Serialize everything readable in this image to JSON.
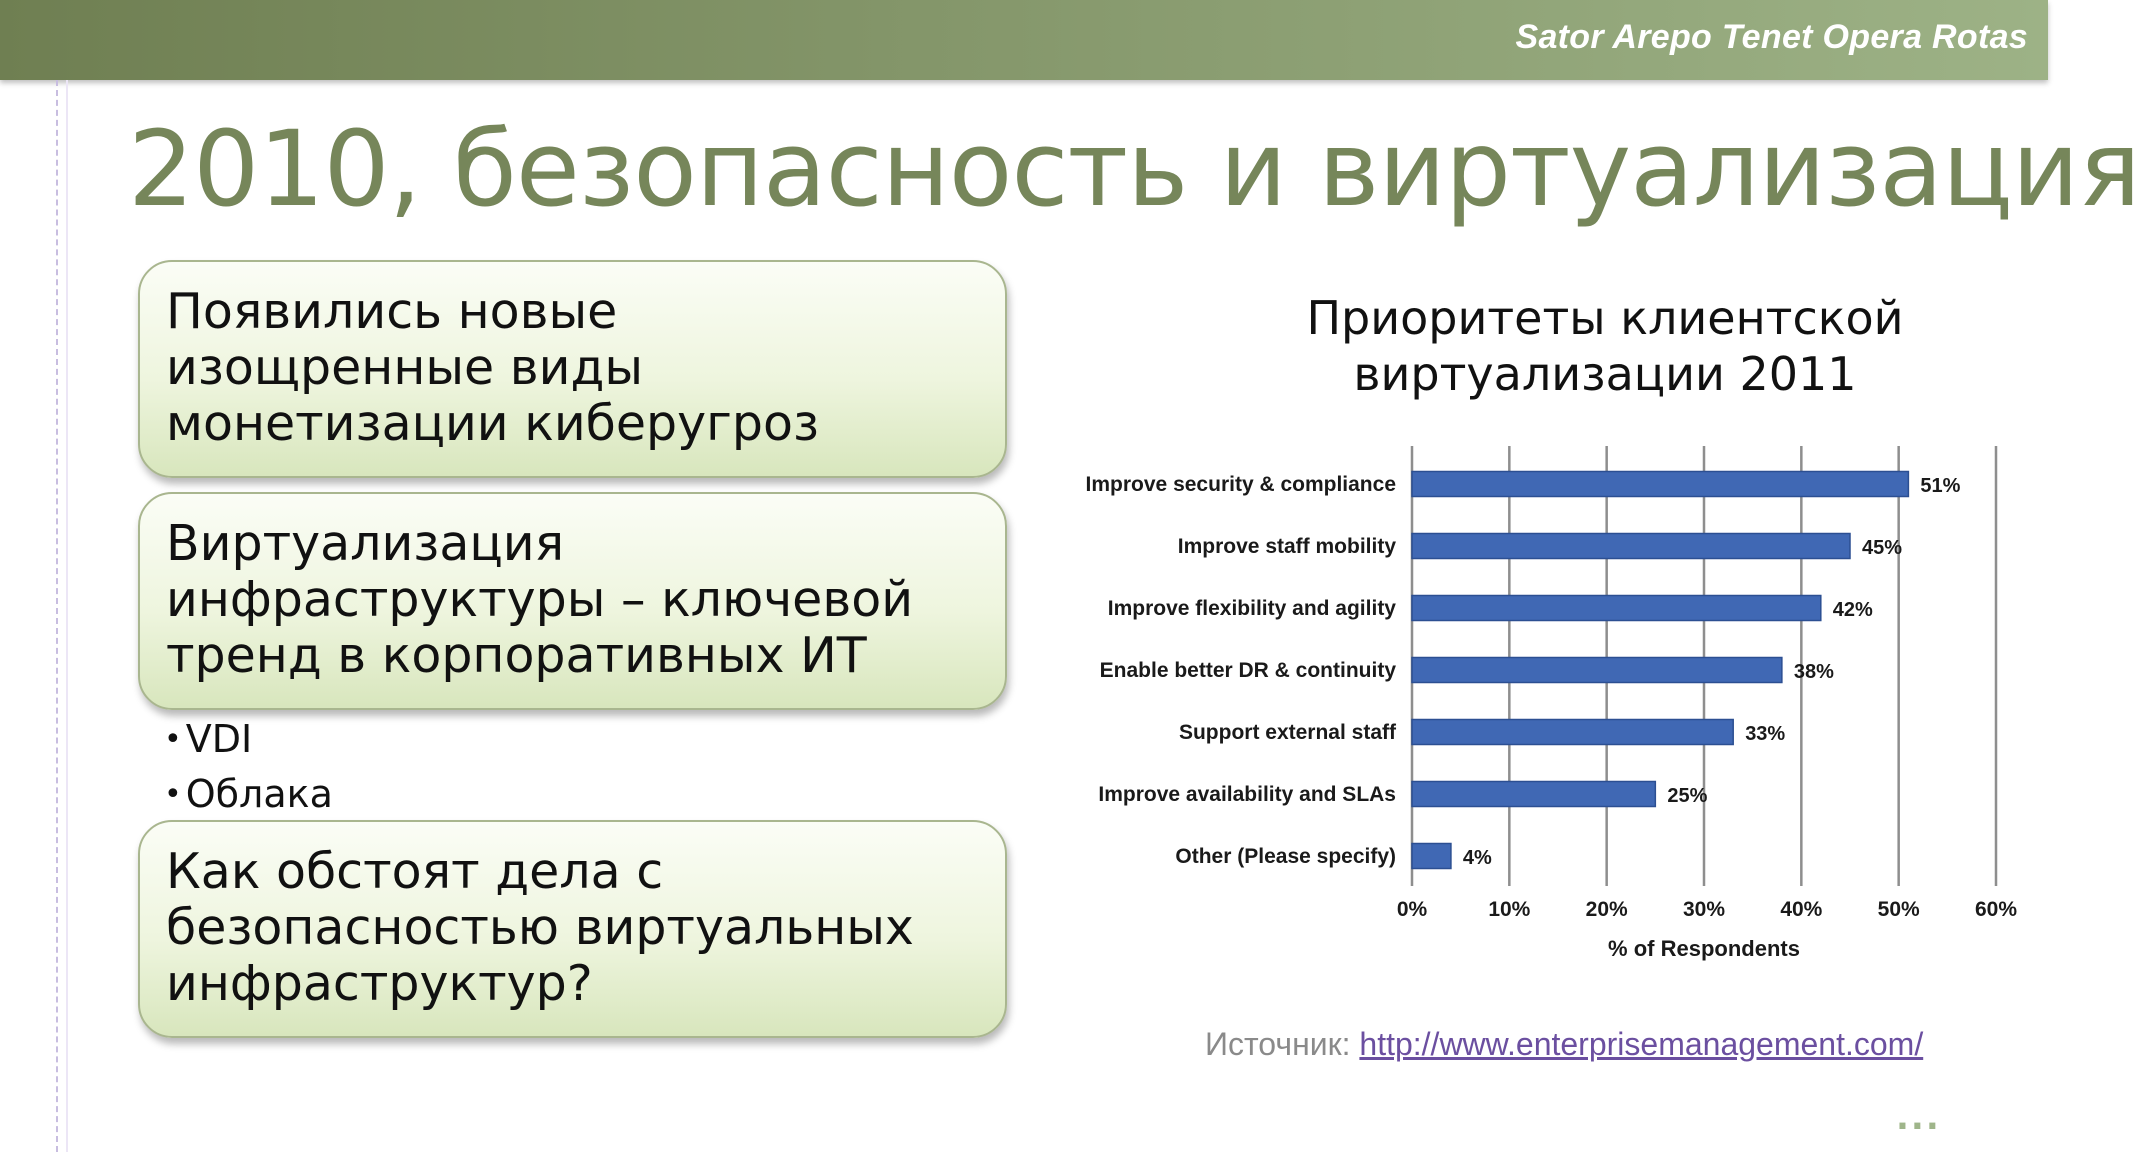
{
  "header": {
    "brand": "Sator Arepo Tenet Opera Rotas"
  },
  "slide": {
    "title": "2010, безопасность и виртуализация",
    "boxes": [
      {
        "lines": [
          "Появились новые",
          "изощренные виды",
          "монетизации киберугроз"
        ]
      },
      {
        "lines": [
          "Виртуализация",
          "инфраструктуры – ключевой",
          "тренд в корпоративных ИТ"
        ]
      },
      {
        "lines": [
          "Как обстоят дела с",
          "безопасностью виртуальных",
          "инфраструктур?"
        ]
      }
    ],
    "bullets": [
      "VDI",
      "Облака"
    ]
  },
  "chart_data": {
    "type": "bar",
    "orientation": "horizontal",
    "title_lines": [
      "Приоритеты клиентской",
      "виртуализации 2011"
    ],
    "categories": [
      "Improve security & compliance",
      "Improve staff mobility",
      "Improve flexibility and agility",
      "Enable better DR & continuity",
      "Support external staff",
      "Improve availability and SLAs",
      "Other (Please specify)"
    ],
    "values": [
      51,
      45,
      42,
      38,
      33,
      25,
      4
    ],
    "value_labels": [
      "51%",
      "45%",
      "42%",
      "38%",
      "33%",
      "25%",
      "4%"
    ],
    "xlim": [
      0,
      60
    ],
    "xticks": [
      "0%",
      "10%",
      "20%",
      "30%",
      "40%",
      "50%",
      "60%"
    ],
    "xlabel": "% of Respondents",
    "grid": true,
    "bar_color": "#4068b4"
  },
  "source": {
    "label": "Источник: ",
    "link": "http://www.enterprisemanagement.com/"
  },
  "footer": {
    "dots": "..."
  }
}
